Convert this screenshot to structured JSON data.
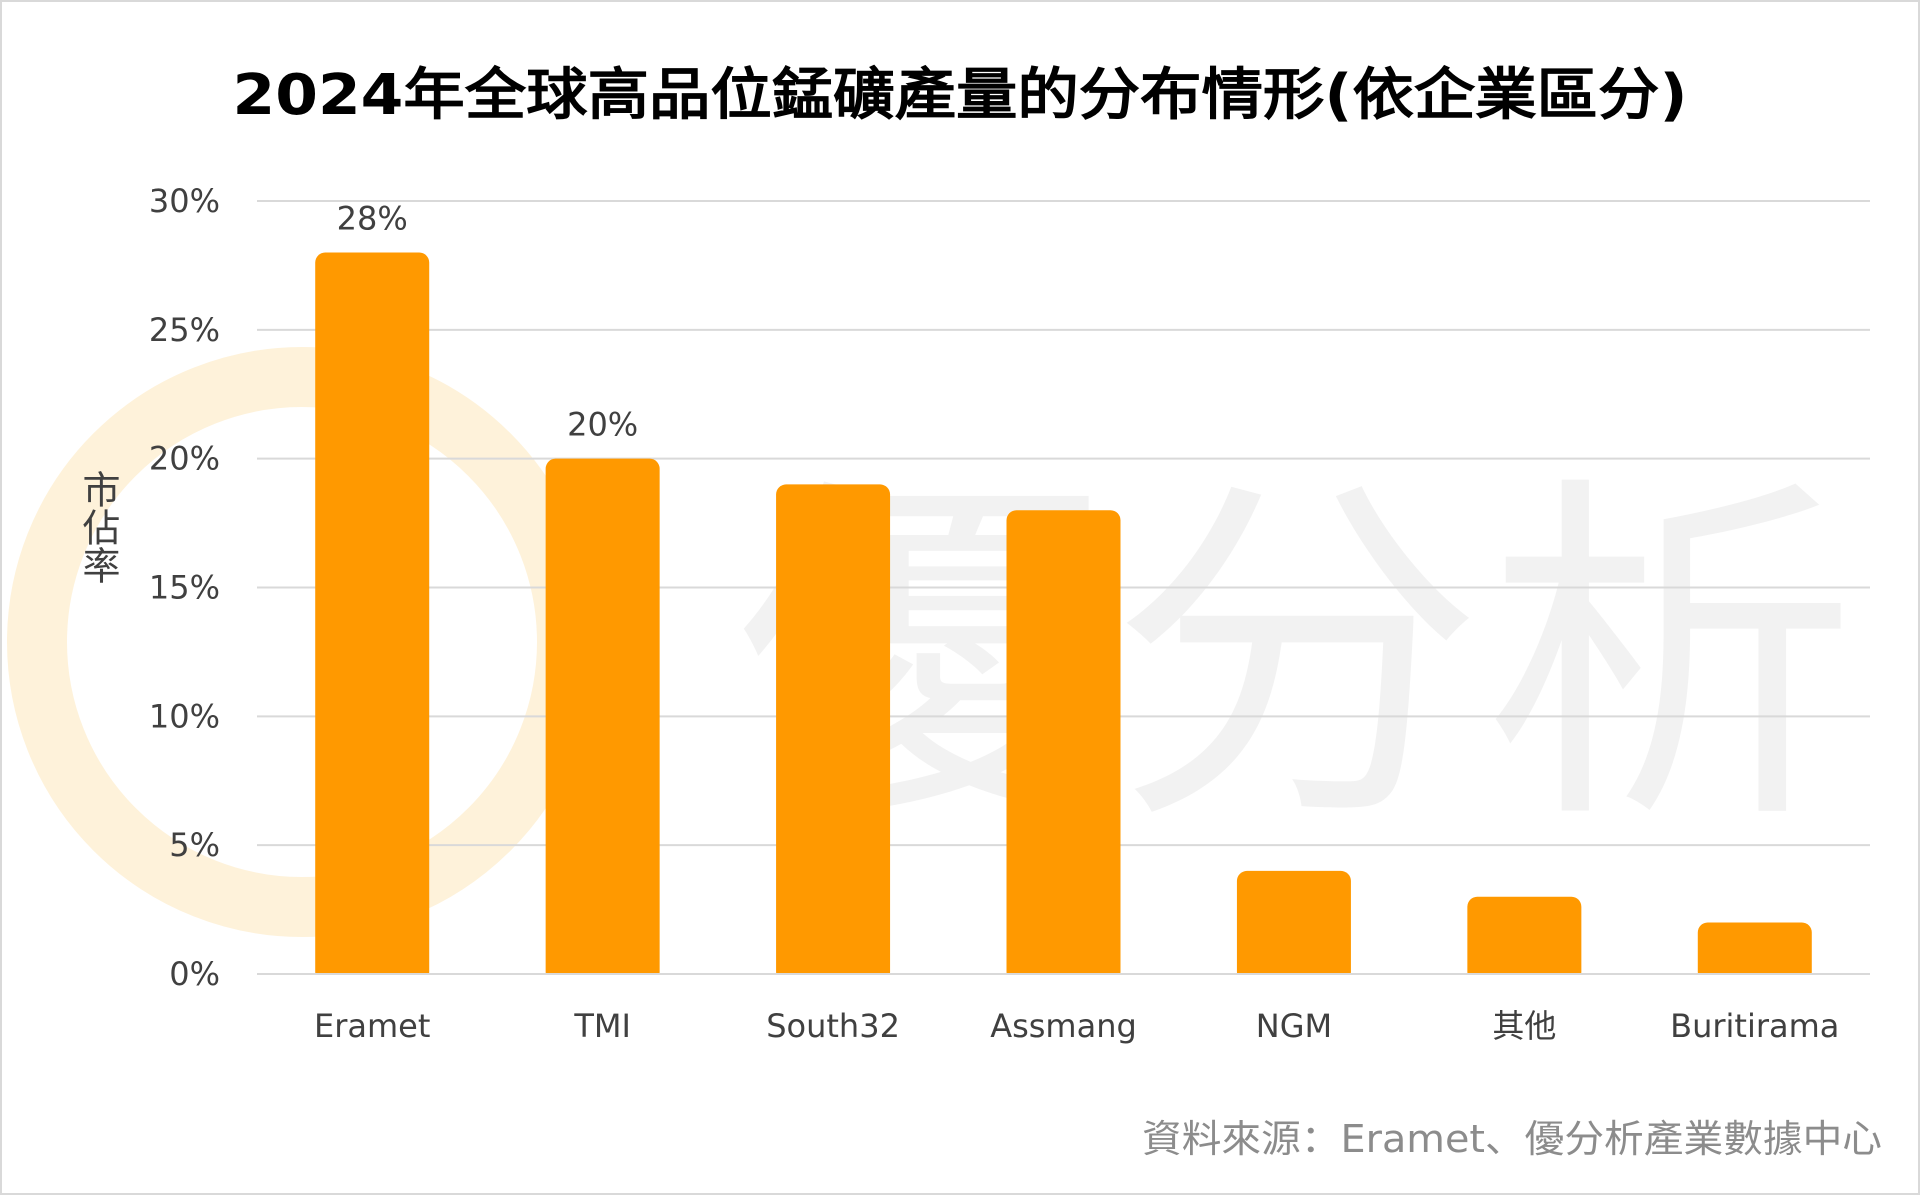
{
  "chart_data": {
    "type": "bar",
    "title": "2024年全球高品位錳礦產量的分布情形(依企業區分)",
    "ylabel": "市佔率",
    "xlabel": "",
    "categories": [
      "Eramet",
      "TMI",
      "South32",
      "Assmang",
      "NGM",
      "其他",
      "Buritirama"
    ],
    "values": [
      28,
      20,
      19,
      18,
      4,
      3,
      2
    ],
    "data_labels": [
      "28%",
      "20%",
      "",
      "",
      "",
      "",
      ""
    ],
    "ylim": [
      0,
      30
    ],
    "y_ticks": [
      "0%",
      "5%",
      "10%",
      "15%",
      "20%",
      "25%",
      "30%"
    ],
    "grid": true,
    "bar_color": "#ff9900",
    "source": "資料來源：Eramet、優分析產業數據中心"
  },
  "watermark": {
    "text": "優分析",
    "logo_color": "#fde9c2"
  }
}
